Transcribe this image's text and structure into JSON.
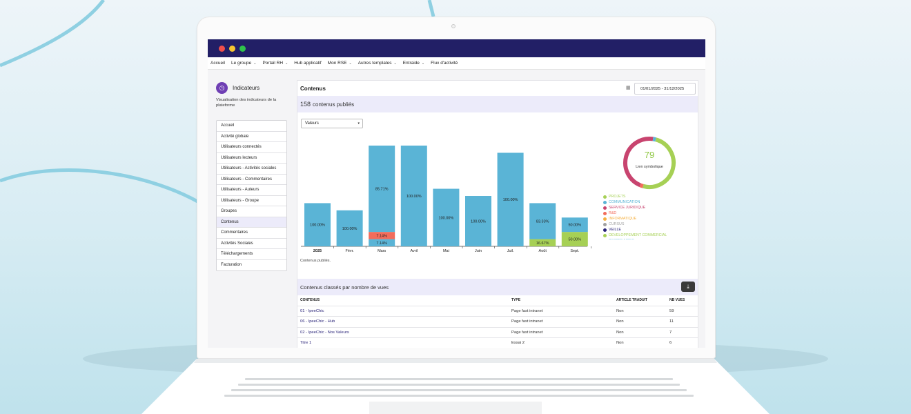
{
  "nav": {
    "items": [
      {
        "label": "Accueil",
        "dropdown": false
      },
      {
        "label": "Le groupe",
        "dropdown": true
      },
      {
        "label": "Portail RH",
        "dropdown": true
      },
      {
        "label": "Hub applicatif",
        "dropdown": false
      },
      {
        "label": "Mon RSE",
        "dropdown": true
      },
      {
        "label": "Autres templates",
        "dropdown": true
      },
      {
        "label": "Entraide",
        "dropdown": true
      },
      {
        "label": "Flux d'activité",
        "dropdown": false
      }
    ]
  },
  "sidebar": {
    "title": "Indicateurs",
    "description": "Visualisation des indicateurs de la plateforme",
    "items": [
      {
        "label": "Accueil",
        "active": false
      },
      {
        "label": "Activité globale",
        "active": false
      },
      {
        "label": "Utilisateurs connectés",
        "active": false
      },
      {
        "label": "Utilisateurs lecteurs",
        "active": false
      },
      {
        "label": "Utilisateurs - Activités sociales",
        "active": false
      },
      {
        "label": "Utilisateurs - Commentaires",
        "active": false
      },
      {
        "label": "Utilisateurs - Auteurs",
        "active": false
      },
      {
        "label": "Utilisateurs - Groupe",
        "active": false
      },
      {
        "label": "Groupes",
        "active": false
      },
      {
        "label": "Contenus",
        "active": true
      },
      {
        "label": "Commentaires",
        "active": false
      },
      {
        "label": "Activités Sociales",
        "active": false
      },
      {
        "label": "Téléchargements",
        "active": false
      },
      {
        "label": "Facturation",
        "active": false
      }
    ]
  },
  "main": {
    "title": "Contenus",
    "date_range": "01/01/2025 - 31/12/2025",
    "count": "158",
    "count_label": "contenus publiés",
    "select_value": "Valeurs",
    "caption": "Contenus publiés."
  },
  "chart_data": {
    "type": "bar",
    "stacked": true,
    "categories": [
      "2025",
      "Févr.",
      "Mars",
      "Avril",
      "Mai",
      "Juin",
      "Juil.",
      "Août",
      "Sept."
    ],
    "totals": [
      6,
      5,
      14,
      14,
      8,
      7,
      13,
      6,
      4
    ],
    "series": [
      {
        "color": "#5ab4d6",
        "values": [
          6,
          5,
          12,
          14,
          8,
          7,
          13,
          5,
          2
        ],
        "labels": [
          "100.00%",
          "100.00%",
          "85.71%",
          "100.00%",
          "100.00%",
          "100.00%",
          "100.00%",
          "83.33%",
          "50.00%"
        ]
      },
      {
        "color": "#f26c5b",
        "values": [
          0,
          0,
          1,
          0,
          0,
          0,
          0,
          0,
          0
        ],
        "labels": [
          "",
          "",
          "7.14%",
          "",
          "",
          "",
          "",
          "",
          ""
        ]
      },
      {
        "color": "#a6d055",
        "values": [
          0,
          0,
          0,
          0,
          0,
          0,
          0,
          1,
          2
        ],
        "labels": [
          "",
          "",
          "",
          "",
          "",
          "",
          "",
          "16.67%",
          "50.00%"
        ]
      }
    ],
    "extra_segments": [
      {
        "category": "Mars",
        "color": "#5ab4d6",
        "value": 1,
        "label": "7.14%"
      }
    ],
    "ylim": [
      0,
      14
    ],
    "grid": false
  },
  "donut": {
    "value": "79",
    "label": "Lien symbolique",
    "segments": [
      {
        "color": "#a6d055",
        "fraction": 0.5
      },
      {
        "color": "#f26c5b",
        "fraction": 0.02
      },
      {
        "color": "#c8446f",
        "fraction": 0.46
      },
      {
        "color": "#5ab4d6",
        "fraction": 0.02
      }
    ]
  },
  "legend": [
    {
      "label": "PROJETS",
      "color": "#a6d055"
    },
    {
      "label": "COMMUNICATION",
      "color": "#5ab4d6"
    },
    {
      "label": "SERVICE JURIDIQUE",
      "color": "#c8446f"
    },
    {
      "label": "R&D",
      "color": "#f26c5b"
    },
    {
      "label": "INFORMATIQUE",
      "color": "#f5b041"
    },
    {
      "label": "CURSUS",
      "color": "#a0a0a0"
    },
    {
      "label": "VEILLE",
      "color": "#2a2479"
    },
    {
      "label": "DEVELOPPEMENT COMMERCIAL",
      "color": "#a6d055"
    },
    {
      "label": "PARTENAIRES",
      "color": "#5ab4d6"
    }
  ],
  "table": {
    "title": "Contenus classés par nombre de vues",
    "headers": [
      "CONTENUS",
      "TYPE",
      "ARTICLE TRADUIT",
      "NB VUES"
    ],
    "rows": [
      [
        "01 - IpeeChic",
        "Page fast intranet",
        "Non",
        "59"
      ],
      [
        "06 - IpeeChic - Hub",
        "Page fast intranet",
        "Non",
        "11"
      ],
      [
        "02 - IpeeChic - Nos Valeurs",
        "Page fast intranet",
        "Non",
        "7"
      ],
      [
        "Titre 1",
        "Essai 2",
        "Non",
        "6"
      ]
    ]
  }
}
